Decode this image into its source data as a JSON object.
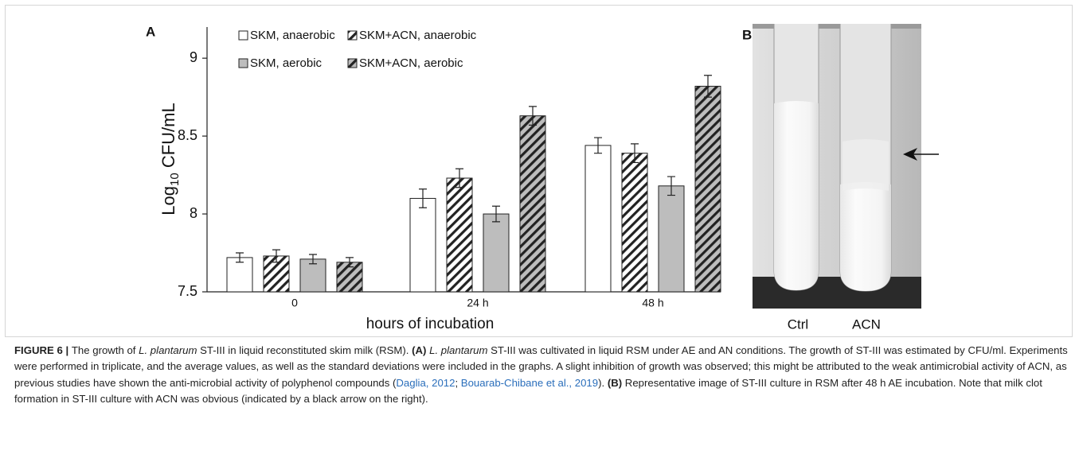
{
  "panel_labels": [
    "A",
    "B"
  ],
  "photo_labels": [
    "Ctrl",
    "ACN"
  ],
  "chart_data": {
    "type": "bar",
    "x_label": "hours of incubation",
    "y_label_parts": [
      "Log",
      "10",
      " CFU/mL"
    ],
    "categories": [
      "0",
      "24 h",
      "48 h"
    ],
    "series": [
      {
        "name": "SKM, anaerobic",
        "color": "#ffffff",
        "hatch": false,
        "values": [
          7.72,
          8.1,
          8.44
        ],
        "errors": [
          0.03,
          0.06,
          0.05
        ]
      },
      {
        "name": "SKM+ACN, anaerobic",
        "color": "#ffffff",
        "hatch": true,
        "values": [
          7.73,
          8.23,
          8.39
        ],
        "errors": [
          0.04,
          0.06,
          0.06
        ]
      },
      {
        "name": "SKM, aerobic",
        "color": "#bdbdbd",
        "hatch": false,
        "values": [
          7.71,
          8.0,
          8.18
        ],
        "errors": [
          0.03,
          0.05,
          0.06
        ]
      },
      {
        "name": "SKM+ACN, aerobic",
        "color": "#bdbdbd",
        "hatch": true,
        "values": [
          7.69,
          8.63,
          8.82
        ],
        "errors": [
          0.03,
          0.06,
          0.07
        ]
      }
    ],
    "ylim": [
      7.5,
      9.2
    ],
    "yticks": [
      7.5,
      8,
      8.5,
      9
    ],
    "grid": false
  },
  "caption": [
    "FIGURE 6 | ",
    "The growth of ",
    "L. plantarum",
    " ST-III in liquid reconstituted skim milk (RSM). ",
    "(A) ",
    "L. plantarum",
    " ST-III was cultivated in liquid RSM under AE and AN conditions. The growth of ST-III was estimated by CFU/ml. Experiments were performed in triplicate, and the average values, as well as the standard deviations were included in the graphs. A slight inhibition of growth was observed; this might be attributed to the weak antimicrobial activity of ACN, as previous studies have shown the anti-microbial activity of polyphenol compounds (",
    "Daglia, 2012",
    "; ",
    "Bouarab-Chibane et al., 2019",
    "). ",
    "(B)",
    " Representative image of ST-III culture in RSM after 48 h AE incubation. Note that milk clot formation in ST-III culture with ACN was obvious (indicated by a black arrow on the right)."
  ]
}
